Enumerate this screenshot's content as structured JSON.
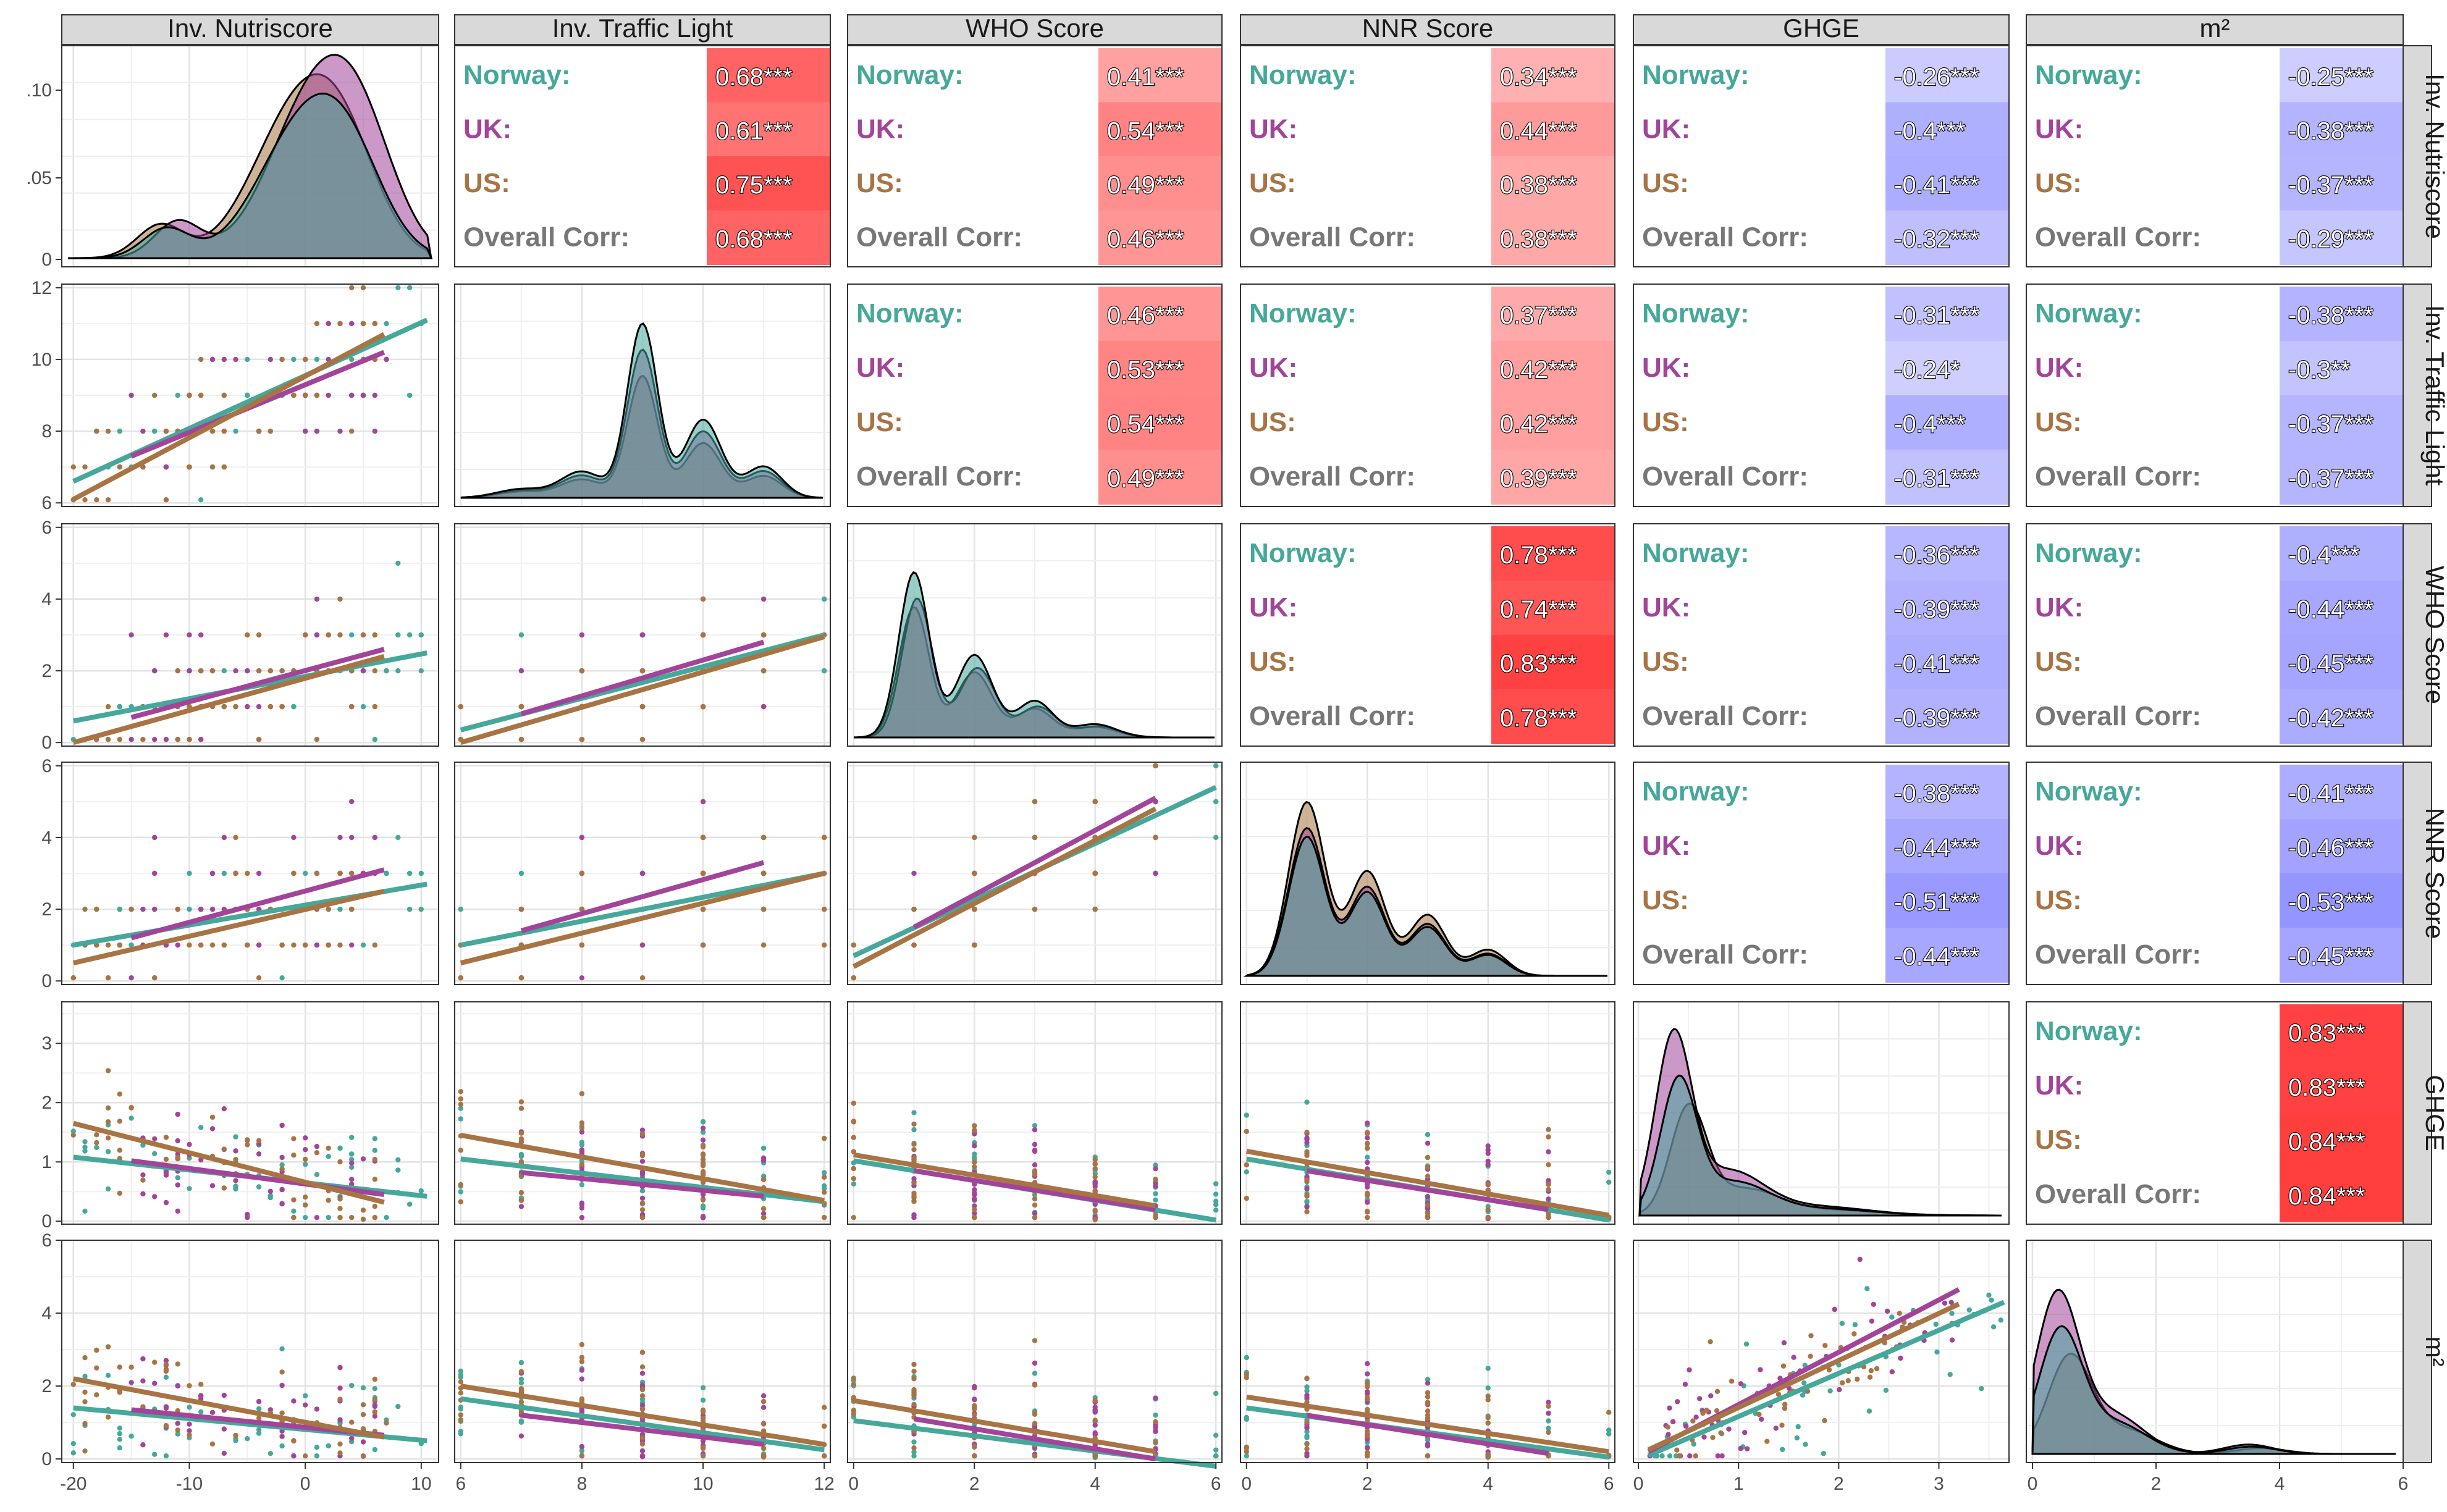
{
  "chart_data": {
    "type": "scatter",
    "title": "",
    "variables": [
      "Inv. Nutriscore",
      "Inv. Traffic Light",
      "WHO Score",
      "NNR Score",
      "GHGE",
      "m²"
    ],
    "groups": [
      {
        "name": "Norway",
        "label": "Norway:",
        "color": "#45a89a"
      },
      {
        "name": "UK",
        "label": "UK:",
        "color": "#a2449a"
      },
      {
        "name": "US",
        "label": "US:",
        "color": "#a87444"
      }
    ],
    "overall_label": "Overall Corr:",
    "overall_color": "#777777",
    "grid": true,
    "axis_ticks": [
      [
        "-20",
        "-10",
        "0",
        "10"
      ],
      [
        "6",
        "8",
        "10",
        "12"
      ],
      [
        "0",
        "2",
        "4",
        "6"
      ],
      [
        "0",
        "2",
        "4",
        "6"
      ],
      [
        "0",
        "1",
        "2",
        "3"
      ],
      [
        "0",
        "2",
        "4",
        "6"
      ]
    ],
    "density_y_ticks": [
      ".10",
      ".05",
      "0"
    ],
    "axis_ranges": [
      [
        -21,
        11.5
      ],
      [
        5.9,
        12.1
      ],
      [
        -0.1,
        6.1
      ],
      [
        -0.1,
        6.1
      ],
      [
        -0.05,
        3.7
      ],
      [
        -0.1,
        6.0
      ]
    ],
    "correlations": [
      {
        "row": 0,
        "col": 1,
        "values": [
          "0.68***",
          "0.61***",
          "0.75***",
          "0.68***"
        ]
      },
      {
        "row": 0,
        "col": 2,
        "values": [
          "0.41***",
          "0.54***",
          "0.49***",
          "0.46***"
        ]
      },
      {
        "row": 0,
        "col": 3,
        "values": [
          "0.34***",
          "0.44***",
          "0.38***",
          "0.38***"
        ]
      },
      {
        "row": 0,
        "col": 4,
        "values": [
          "-0.26***",
          "-0.4***",
          "-0.41***",
          "-0.32***"
        ]
      },
      {
        "row": 0,
        "col": 5,
        "values": [
          "-0.25***",
          "-0.38***",
          "-0.37***",
          "-0.29***"
        ]
      },
      {
        "row": 1,
        "col": 2,
        "values": [
          "0.46***",
          "0.53***",
          "0.54***",
          "0.49***"
        ]
      },
      {
        "row": 1,
        "col": 3,
        "values": [
          "0.37***",
          "0.42***",
          "0.42***",
          "0.39***"
        ]
      },
      {
        "row": 1,
        "col": 4,
        "values": [
          "-0.31***",
          "-0.24*",
          "-0.4***",
          "-0.31***"
        ]
      },
      {
        "row": 1,
        "col": 5,
        "values": [
          "-0.38***",
          "-0.3**",
          "-0.37***",
          "-0.37***"
        ]
      },
      {
        "row": 2,
        "col": 3,
        "values": [
          "0.78***",
          "0.74***",
          "0.83***",
          "0.78***"
        ]
      },
      {
        "row": 2,
        "col": 4,
        "values": [
          "-0.36***",
          "-0.39***",
          "-0.41***",
          "-0.39***"
        ]
      },
      {
        "row": 2,
        "col": 5,
        "values": [
          "-0.4***",
          "-0.44***",
          "-0.45***",
          "-0.42***"
        ]
      },
      {
        "row": 3,
        "col": 4,
        "values": [
          "-0.38***",
          "-0.44***",
          "-0.51***",
          "-0.44***"
        ]
      },
      {
        "row": 3,
        "col": 5,
        "values": [
          "-0.41***",
          "-0.46***",
          "-0.53***",
          "-0.45***"
        ]
      },
      {
        "row": 4,
        "col": 5,
        "values": [
          "0.83***",
          "0.83***",
          "0.84***",
          "0.84***"
        ]
      }
    ],
    "regression_lines": [
      {
        "row": 1,
        "col": 0,
        "lines": [
          [
            -20,
            6.6,
            10.5,
            11.1
          ],
          [
            -15,
            7.3,
            6.8,
            10.2
          ],
          [
            -20,
            6.1,
            6.8,
            10.7
          ]
        ]
      },
      {
        "row": 2,
        "col": 0,
        "lines": [
          [
            -20,
            0.6,
            10.5,
            2.5
          ],
          [
            -15,
            0.7,
            6.8,
            2.6
          ],
          [
            -20,
            0.0,
            6.8,
            2.4
          ]
        ]
      },
      {
        "row": 2,
        "col": 1,
        "lines": [
          [
            6,
            0.35,
            12,
            3.0
          ],
          [
            7,
            0.8,
            11,
            2.8
          ],
          [
            6,
            0.0,
            12,
            2.95
          ]
        ]
      },
      {
        "row": 3,
        "col": 0,
        "lines": [
          [
            -20,
            1.0,
            10.5,
            2.7
          ],
          [
            -15,
            1.2,
            6.8,
            3.1
          ],
          [
            -20,
            0.5,
            6.8,
            2.5
          ]
        ]
      },
      {
        "row": 3,
        "col": 1,
        "lines": [
          [
            6,
            1.0,
            12,
            3.0
          ],
          [
            7,
            1.4,
            11,
            3.3
          ],
          [
            6,
            0.5,
            12,
            3.0
          ]
        ]
      },
      {
        "row": 3,
        "col": 2,
        "lines": [
          [
            0,
            0.7,
            6,
            5.4
          ],
          [
            1,
            1.5,
            5,
            5.1
          ],
          [
            0,
            0.4,
            5,
            4.8
          ]
        ]
      },
      {
        "row": 4,
        "col": 0,
        "lines": [
          [
            -20,
            1.08,
            10.5,
            0.42
          ],
          [
            -15,
            1.02,
            6.8,
            0.45
          ],
          [
            -20,
            1.65,
            6.8,
            0.32
          ]
        ]
      },
      {
        "row": 4,
        "col": 1,
        "lines": [
          [
            6,
            1.05,
            12,
            0.33
          ],
          [
            7,
            0.82,
            11,
            0.42
          ],
          [
            6,
            1.45,
            12,
            0.35
          ]
        ]
      },
      {
        "row": 4,
        "col": 2,
        "lines": [
          [
            0,
            1.02,
            6,
            0.02
          ],
          [
            1,
            0.85,
            5,
            0.2
          ],
          [
            0,
            1.12,
            5,
            0.26
          ]
        ]
      },
      {
        "row": 4,
        "col": 3,
        "lines": [
          [
            0,
            1.05,
            6,
            0.02
          ],
          [
            1,
            0.85,
            5,
            0.2
          ],
          [
            0,
            1.18,
            6,
            0.1
          ]
        ]
      },
      {
        "row": 5,
        "col": 0,
        "lines": [
          [
            -20,
            1.4,
            10.5,
            0.5
          ],
          [
            -15,
            1.35,
            6.8,
            0.65
          ],
          [
            -20,
            2.2,
            6.8,
            0.6
          ]
        ]
      },
      {
        "row": 5,
        "col": 1,
        "lines": [
          [
            6,
            1.65,
            12,
            0.25
          ],
          [
            7,
            1.2,
            11,
            0.4
          ],
          [
            6,
            2.0,
            12,
            0.4
          ]
        ]
      },
      {
        "row": 5,
        "col": 2,
        "lines": [
          [
            0,
            1.05,
            6,
            -0.2
          ],
          [
            1,
            1.1,
            5,
            0.0
          ],
          [
            0,
            1.6,
            5,
            0.2
          ]
        ]
      },
      {
        "row": 5,
        "col": 3,
        "lines": [
          [
            0,
            1.4,
            6,
            0.05
          ],
          [
            1,
            1.2,
            5,
            0.15
          ],
          [
            0,
            1.7,
            6,
            0.2
          ]
        ]
      },
      {
        "row": 5,
        "col": 4,
        "lines": [
          [
            0.1,
            0.1,
            3.65,
            4.3
          ],
          [
            0.1,
            0.2,
            3.2,
            4.65
          ],
          [
            0.1,
            0.25,
            3.2,
            4.25
          ]
        ]
      }
    ]
  }
}
